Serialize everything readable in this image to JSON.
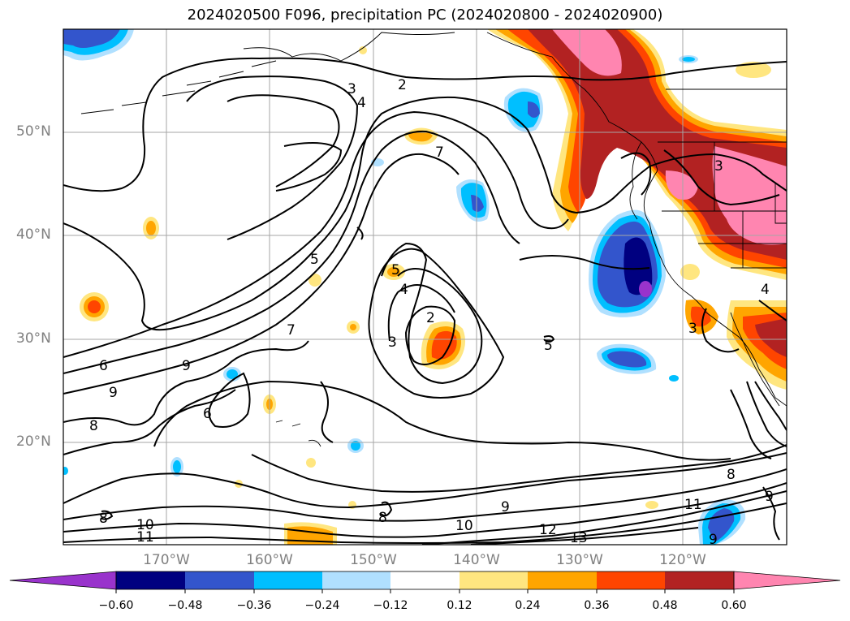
{
  "title": "2024020500 F096, precipitation PC (2024020800 - 2024020900)",
  "lat_labels": [
    "50°N",
    "40°N",
    "30°N",
    "20°N"
  ],
  "lon_labels": [
    "170°W",
    "160°W",
    "150°W",
    "140°W",
    "130°W",
    "120°W"
  ],
  "colorbar": {
    "ticks": [
      "−0.60",
      "−0.48",
      "−0.36",
      "−0.24",
      "−0.12",
      "0.12",
      "0.24",
      "0.36",
      "0.48",
      "0.60"
    ],
    "colors": [
      "#9933cc",
      "#000080",
      "#3355cc",
      "#00bfff",
      "#b0e0ff",
      "#ffffff",
      "#ffe680",
      "#ffa500",
      "#ff4500",
      "#b22222",
      "#ff85b0"
    ]
  },
  "contour_labels": [
    "2",
    "3",
    "4",
    "5",
    "6",
    "7",
    "8",
    "9",
    "10",
    "11",
    "12",
    "13"
  ]
}
